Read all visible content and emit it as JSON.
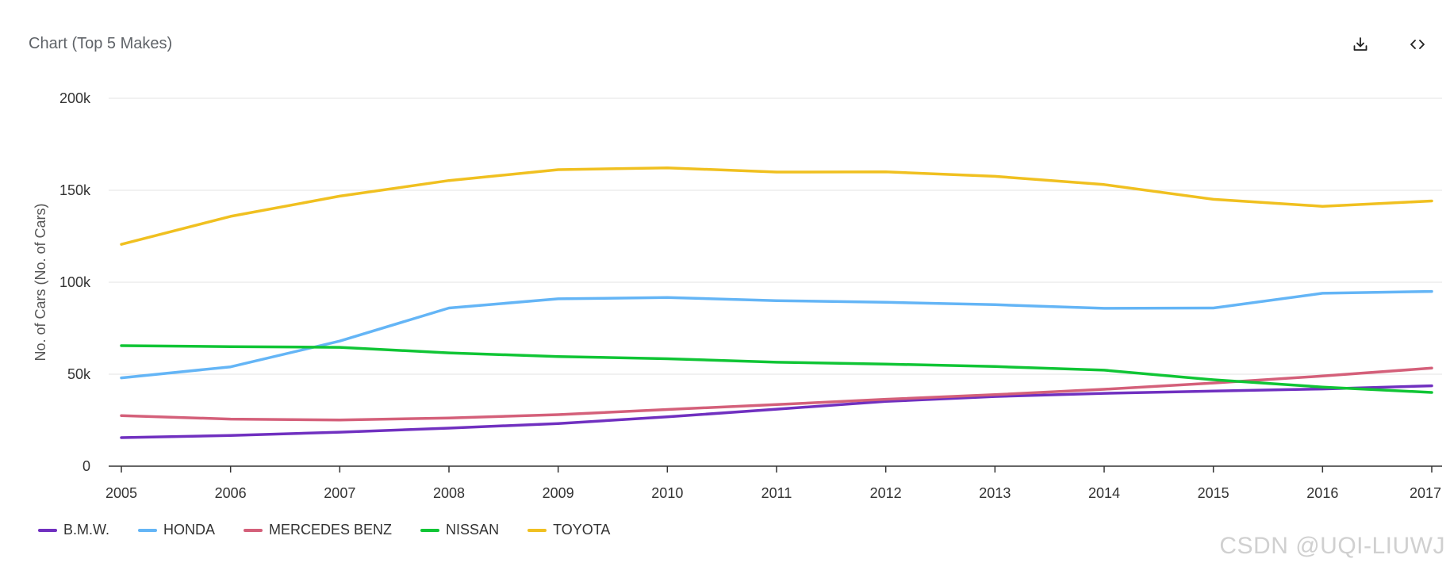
{
  "header": {
    "title": "Chart (Top 5 Makes)",
    "download_icon": "download-icon",
    "code_icon": "code-icon"
  },
  "watermark": "CSDN @UQI-LIUWJ",
  "chart_data": {
    "type": "line",
    "title": "Chart (Top 5 Makes)",
    "xlabel": "",
    "ylabel": "No. of Cars (No. of Cars)",
    "ylim": [
      0,
      200000
    ],
    "y_ticks": [
      0,
      50000,
      100000,
      150000,
      200000
    ],
    "y_tick_labels": [
      "0",
      "50k",
      "100k",
      "150k",
      "200k"
    ],
    "grid": true,
    "legend_position": "bottom-left",
    "x": [
      "2005",
      "2006",
      "2007",
      "2008",
      "2009",
      "2010",
      "2011",
      "2012",
      "2013",
      "2014",
      "2015",
      "2016",
      "2017"
    ],
    "series": [
      {
        "name": "B.M.W.",
        "color": "#7030c0",
        "values": [
          15500,
          16700,
          18500,
          20700,
          23200,
          26800,
          31000,
          35200,
          37900,
          39600,
          40800,
          42000,
          43700
        ]
      },
      {
        "name": "HONDA",
        "color": "#64b5f6",
        "values": [
          48000,
          54000,
          68000,
          86000,
          91000,
          91700,
          90000,
          89100,
          87800,
          85800,
          86000,
          94000,
          95000
        ]
      },
      {
        "name": "MERCEDES BENZ",
        "color": "#d4607a",
        "values": [
          27500,
          25600,
          25100,
          26200,
          28000,
          30800,
          33500,
          36400,
          38900,
          41800,
          45200,
          49000,
          53300
        ]
      },
      {
        "name": "NISSAN",
        "color": "#10c535",
        "values": [
          65500,
          65000,
          64600,
          61600,
          59600,
          58400,
          56500,
          55500,
          54200,
          52200,
          47000,
          43000,
          40100
        ]
      },
      {
        "name": "TOYOTA",
        "color": "#f0c020",
        "values": [
          120600,
          135800,
          146800,
          155300,
          161200,
          162200,
          159900,
          160000,
          157600,
          153100,
          145100,
          141300,
          144200
        ]
      }
    ]
  }
}
